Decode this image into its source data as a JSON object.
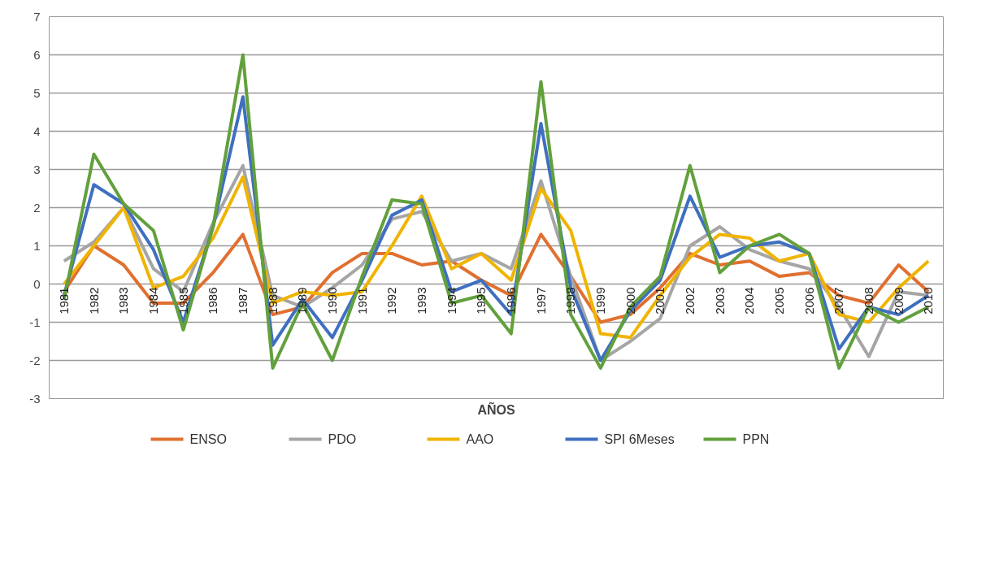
{
  "chart_data": {
    "type": "line",
    "xlabel": "AÑOS",
    "categories": [
      "1981",
      "1982",
      "1983",
      "1984",
      "1985",
      "1986",
      "1987",
      "1988",
      "1989",
      "1990",
      "1991",
      "1992",
      "1993",
      "1994",
      "1995",
      "1996",
      "1997",
      "1998",
      "1999",
      "2000",
      "2001",
      "2002",
      "2003",
      "2004",
      "2005",
      "2006",
      "2007",
      "2008",
      "2009",
      "2010"
    ],
    "series": [
      {
        "name": "ENSO",
        "color": "#e07030",
        "values": [
          -0.2,
          1.0,
          0.5,
          -0.5,
          -0.5,
          0.3,
          1.3,
          -0.8,
          -0.6,
          0.3,
          0.8,
          0.8,
          0.5,
          0.6,
          0.1,
          -0.3,
          1.3,
          0.2,
          -1.0,
          -0.8,
          -0.1,
          0.8,
          0.5,
          0.6,
          0.2,
          0.3,
          -0.3,
          -0.5,
          0.5,
          -0.2
        ]
      },
      {
        "name": "PDO",
        "color": "#a5a5a5",
        "values": [
          0.6,
          1.1,
          2.0,
          0.4,
          -0.2,
          1.6,
          3.1,
          -0.3,
          -0.6,
          -0.1,
          0.5,
          1.7,
          1.9,
          0.6,
          0.8,
          0.4,
          2.7,
          0.2,
          -2.0,
          -1.5,
          -0.9,
          1.0,
          1.5,
          0.9,
          0.6,
          0.4,
          -0.6,
          -1.9,
          -0.2,
          -0.3
        ]
      },
      {
        "name": "AAO",
        "color": "#f0b400",
        "values": [
          0.0,
          1.0,
          2.0,
          -0.1,
          0.2,
          1.2,
          2.8,
          -0.5,
          -0.2,
          -0.3,
          -0.2,
          1.0,
          2.3,
          0.4,
          0.8,
          0.1,
          2.5,
          1.4,
          -1.3,
          -1.4,
          -0.3,
          0.7,
          1.3,
          1.2,
          0.6,
          0.8,
          -0.8,
          -1.0,
          -0.1,
          0.6
        ]
      },
      {
        "name": "SPI 6Meses",
        "color": "#3f6fc0",
        "values": [
          -0.3,
          2.6,
          2.1,
          0.9,
          -1.0,
          1.5,
          4.9,
          -1.6,
          -0.4,
          -1.4,
          0.1,
          1.8,
          2.2,
          -0.2,
          0.1,
          -0.8,
          4.2,
          -0.1,
          -2.0,
          -0.7,
          0.1,
          2.3,
          0.7,
          1.0,
          1.1,
          0.8,
          -1.7,
          -0.6,
          -0.8,
          -0.3
        ]
      },
      {
        "name": "PPN",
        "color": "#62a03c",
        "values": [
          -0.4,
          3.4,
          2.1,
          1.4,
          -1.2,
          1.5,
          6.0,
          -2.2,
          -0.5,
          -2.0,
          0.2,
          2.2,
          2.1,
          -0.5,
          -0.3,
          -1.3,
          5.3,
          -0.8,
          -2.2,
          -0.6,
          0.2,
          3.1,
          0.3,
          1.0,
          1.3,
          0.8,
          -2.2,
          -0.6,
          -1.0,
          -0.6
        ]
      }
    ],
    "ylim": [
      -3,
      7
    ],
    "yticks": [
      -3,
      -2,
      -1,
      0,
      1,
      2,
      3,
      4,
      5,
      6,
      7
    ],
    "grid": "y",
    "legend": "bottom",
    "marker": "none",
    "line_style": "solid"
  }
}
